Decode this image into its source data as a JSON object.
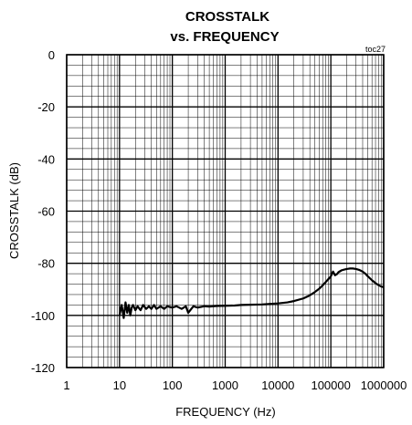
{
  "chart_data": {
    "type": "line",
    "title": "CROSSTALK",
    "subtitle": "vs. FREQUENCY",
    "tag": "toc27",
    "xlabel": "FREQUENCY (Hz)",
    "ylabel": "CROSSTALK (dB)",
    "x_scale": "log",
    "xlim": [
      1,
      1000000
    ],
    "ylim": [
      -120,
      0
    ],
    "grid": true,
    "x_ticks": [
      {
        "value": 1,
        "label": "1"
      },
      {
        "value": 10,
        "label": "10"
      },
      {
        "value": 100,
        "label": "100"
      },
      {
        "value": 1000,
        "label": "1000"
      },
      {
        "value": 10000,
        "label": "10000"
      },
      {
        "value": 100000,
        "label": "100000"
      },
      {
        "value": 1000000,
        "label": "1000000"
      }
    ],
    "y_ticks": [
      {
        "value": 0,
        "label": "0"
      },
      {
        "value": -20,
        "label": "-20"
      },
      {
        "value": -40,
        "label": "-40"
      },
      {
        "value": -60,
        "label": "-60"
      },
      {
        "value": -80,
        "label": "-80"
      },
      {
        "value": -100,
        "label": "-100"
      },
      {
        "value": -120,
        "label": "-120"
      }
    ],
    "series": [
      {
        "color": "#000000",
        "x": [
          10,
          11,
          12,
          13,
          14,
          15,
          16,
          17,
          18,
          20,
          22,
          25,
          28,
          32,
          36,
          40,
          45,
          50,
          60,
          70,
          80,
          100,
          120,
          150,
          180,
          200,
          250,
          300,
          400,
          500,
          700,
          1000,
          1500,
          2000,
          3000,
          5000,
          7000,
          10000,
          15000,
          20000,
          30000,
          40000,
          50000,
          60000,
          70000,
          80000,
          100000,
          110000,
          120000,
          130000,
          140000,
          160000,
          180000,
          200000,
          230000,
          260000,
          300000,
          350000,
          400000,
          450000,
          500000,
          600000,
          700000,
          800000,
          900000,
          1000000
        ],
        "y": [
          -100,
          -96,
          -101,
          -95,
          -99,
          -96,
          -100,
          -97,
          -96,
          -98,
          -96.5,
          -98,
          -96,
          -97.5,
          -96.5,
          -97.5,
          -96,
          -97.5,
          -96.5,
          -97.5,
          -96.5,
          -97,
          -96.5,
          -97.5,
          -96.5,
          -99,
          -96.5,
          -97,
          -96.5,
          -96.6,
          -96.4,
          -96.3,
          -96.2,
          -96.0,
          -95.9,
          -95.8,
          -95.6,
          -95.4,
          -95.0,
          -94.5,
          -93.5,
          -92.3,
          -91.0,
          -89.8,
          -88.5,
          -87.2,
          -85.0,
          -83.2,
          -84.6,
          -84.2,
          -83.4,
          -82.7,
          -82.4,
          -82.2,
          -82.0,
          -82.0,
          -82.2,
          -82.6,
          -83.2,
          -84.0,
          -85.0,
          -86.5,
          -87.6,
          -88.4,
          -88.9,
          -89.2
        ]
      }
    ]
  }
}
